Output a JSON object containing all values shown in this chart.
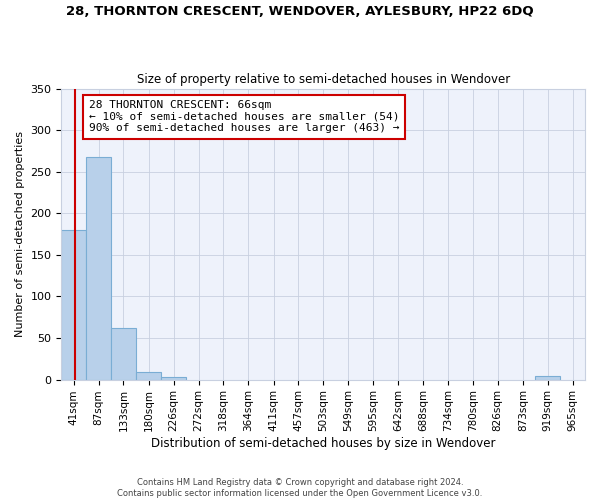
{
  "title": "28, THORNTON CRESCENT, WENDOVER, AYLESBURY, HP22 6DQ",
  "subtitle": "Size of property relative to semi-detached houses in Wendover",
  "xlabel": "Distribution of semi-detached houses by size in Wendover",
  "ylabel": "Number of semi-detached properties",
  "footer_line1": "Contains HM Land Registry data © Crown copyright and database right 2024.",
  "footer_line2": "Contains public sector information licensed under the Open Government Licence v3.0.",
  "annotation_title": "28 THORNTON CRESCENT: 66sqm",
  "annotation_line1": "← 10% of semi-detached houses are smaller (54)",
  "annotation_line2": "90% of semi-detached houses are larger (463) →",
  "property_size_sqm": 66,
  "bar_color": "#b8d0ea",
  "bar_edge_color": "#7aadd4",
  "property_line_color": "#cc0000",
  "annotation_box_color": "#cc0000",
  "background_color": "#eef2fb",
  "grid_color": "#c8d0e0",
  "categories": [
    "41sqm",
    "87sqm",
    "133sqm",
    "180sqm",
    "226sqm",
    "272sqm",
    "318sqm",
    "364sqm",
    "411sqm",
    "457sqm",
    "503sqm",
    "549sqm",
    "595sqm",
    "642sqm",
    "688sqm",
    "734sqm",
    "780sqm",
    "826sqm",
    "873sqm",
    "919sqm",
    "965sqm"
  ],
  "bin_edges": [
    41,
    87,
    133,
    180,
    226,
    272,
    318,
    364,
    411,
    457,
    503,
    549,
    595,
    642,
    688,
    734,
    780,
    826,
    873,
    919,
    965,
    1011
  ],
  "values": [
    180,
    268,
    62,
    9,
    3,
    0,
    0,
    0,
    0,
    0,
    0,
    0,
    0,
    0,
    0,
    0,
    0,
    0,
    0,
    4,
    0
  ],
  "ylim": [
    0,
    350
  ],
  "yticks": [
    0,
    50,
    100,
    150,
    200,
    250,
    300,
    350
  ]
}
